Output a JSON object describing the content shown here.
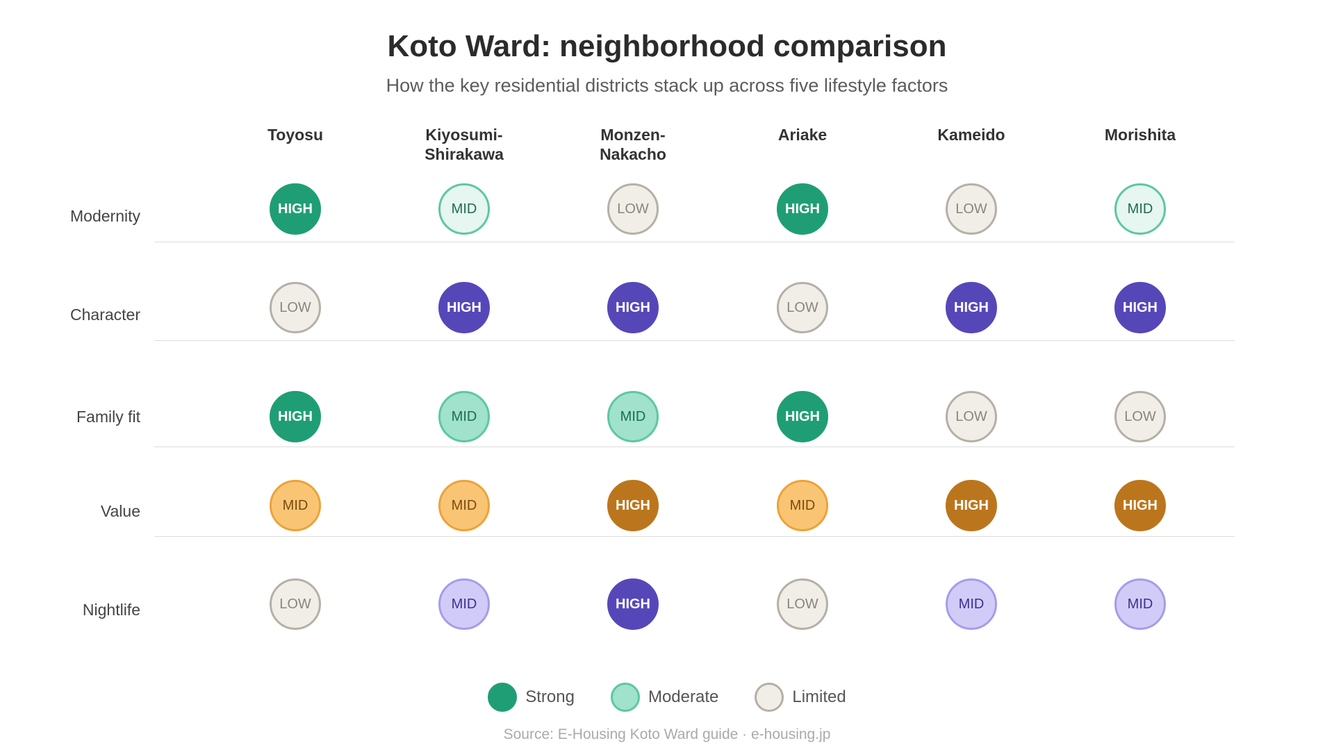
{
  "chart_data": {
    "type": "table",
    "title": "Koto Ward: neighborhood comparison",
    "subtitle": "How the key residential districts stack up across five lifestyle factors",
    "columns": [
      "Toyosu",
      "Kiyosumi-\nShirakawa",
      "Monzen-\nNakacho",
      "Ariake",
      "Kameido",
      "Morishita"
    ],
    "rows": [
      {
        "label": "Modernity",
        "theme": "green",
        "values": [
          "HIGH",
          "MID",
          "LOW",
          "HIGH",
          "LOW",
          "MID"
        ]
      },
      {
        "label": "Character",
        "theme": "purple",
        "values": [
          "LOW",
          "HIGH",
          "HIGH",
          "LOW",
          "HIGH",
          "HIGH"
        ]
      },
      {
        "label": "Family fit",
        "theme": "green-soft",
        "values": [
          "HIGH",
          "MID",
          "MID",
          "HIGH",
          "LOW",
          "LOW"
        ]
      },
      {
        "label": "Value",
        "theme": "orange",
        "values": [
          "MID",
          "MID",
          "HIGH",
          "MID",
          "HIGH",
          "HIGH"
        ]
      },
      {
        "label": "Nightlife",
        "theme": "purple-soft",
        "values": [
          "LOW",
          "MID",
          "HIGH",
          "LOW",
          "MID",
          "MID"
        ]
      }
    ],
    "legend": [
      {
        "label": "Strong",
        "fill": "#1f9e76",
        "stroke": "#1f9e76"
      },
      {
        "label": "Moderate",
        "fill": "#a0e2cc",
        "stroke": "#5cc7a4"
      },
      {
        "label": "Limited",
        "fill": "#f1eee7",
        "stroke": "#b5b0a7"
      }
    ],
    "source": "Source: E-Housing Koto Ward guide · e-housing.jp"
  },
  "palette": {
    "green": {
      "HIGH": {
        "fill": "#1f9e76",
        "stroke": "#1f9e76",
        "text": "#ffffff"
      },
      "MID": {
        "fill": "#e6f6f0",
        "stroke": "#5cc7a4",
        "text": "#1d6b53"
      }
    },
    "green-soft": {
      "HIGH": {
        "fill": "#1f9e76",
        "stroke": "#1f9e76",
        "text": "#ffffff"
      },
      "MID": {
        "fill": "#a0e2cc",
        "stroke": "#5cc7a4",
        "text": "#1d6b53"
      }
    },
    "purple": {
      "HIGH": {
        "fill": "#5647b9",
        "stroke": "#5647b9",
        "text": "#ffffff"
      },
      "MID": {
        "fill": "#d1ccf7",
        "stroke": "#a59cea",
        "text": "#3c3196"
      }
    },
    "purple-soft": {
      "HIGH": {
        "fill": "#5647b9",
        "stroke": "#5647b9",
        "text": "#ffffff"
      },
      "MID": {
        "fill": "#d1ccf7",
        "stroke": "#a59cea",
        "text": "#3c3196"
      }
    },
    "orange": {
      "HIGH": {
        "fill": "#bb761d",
        "stroke": "#bb761d",
        "text": "#ffffff"
      },
      "MID": {
        "fill": "#f9c574",
        "stroke": "#eda23a",
        "text": "#7a4a10"
      }
    },
    "LOW": {
      "fill": "#f1eee7",
      "stroke": "#b5b0a7",
      "text": "#8a857d"
    }
  }
}
